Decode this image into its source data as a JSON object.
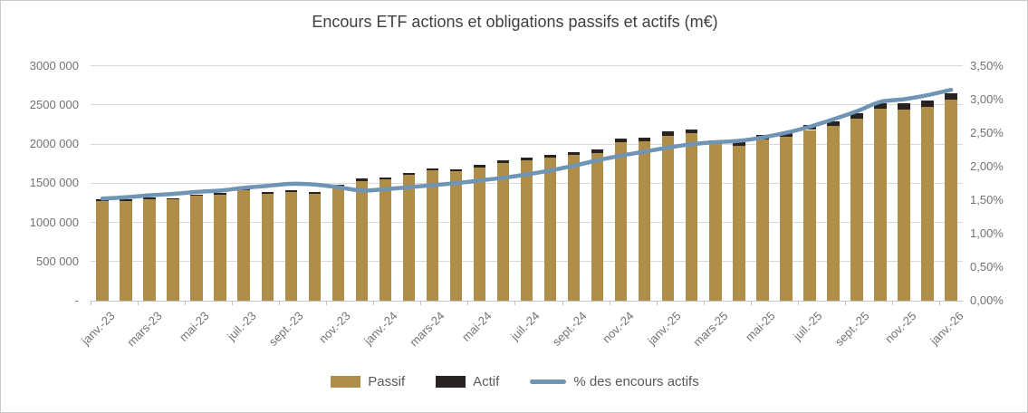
{
  "title": "Encours ETF actions et obligations passifs et actifs (m€)",
  "legend": {
    "passif_label": "Passif",
    "actif_label": "Actif",
    "line_label": "% des encours actifs"
  },
  "colors": {
    "passif": "#B08E48",
    "actif": "#282320",
    "line": "#6F94B4",
    "gridline": "#D9D9D9",
    "axis_text": "#767170",
    "title_text": "#3F3F3F",
    "legend_text": "#595959"
  },
  "chart_data": {
    "type": "combo_bar_line",
    "bar_mode": "stacked",
    "grid": true,
    "legend_position": "bottom",
    "categories": [
      "janv.-23",
      "févr.-23",
      "mars-23",
      "avr.-23",
      "mai-23",
      "juin-23",
      "juil.-23",
      "août-23",
      "sept.-23",
      "oct.-23",
      "nov.-23",
      "déc.-23",
      "janv.-24",
      "févr.-24",
      "mars-24",
      "avr.-24",
      "mai-24",
      "juin-24",
      "juil.-24",
      "août-24",
      "sept.-24",
      "oct.-24",
      "nov.-24",
      "déc.-24",
      "janv.-25",
      "févr.-25",
      "mars-25",
      "avr.-25",
      "mai-25",
      "juin-25",
      "juil.-25",
      "août-25",
      "sept.-25",
      "oct.-25",
      "nov.-25",
      "déc.-25",
      "janv.-26"
    ],
    "x_tick_labels": [
      "janv.-23",
      "mars-23",
      "mai-23",
      "juil.-23",
      "sept.-23",
      "nov.-23",
      "janv.-24",
      "mars-24",
      "mai-24",
      "juil.-24",
      "sept.-24",
      "nov.-24",
      "janv.-25",
      "mars-25",
      "mai-25",
      "juil.-25",
      "sept.-25",
      "nov.-25",
      "janv.-26"
    ],
    "series": [
      {
        "name": "Passif",
        "type": "bar",
        "axis": "left",
        "values": [
          1270400,
          1276000,
          1299300,
          1289200,
          1336000,
          1349500,
          1413800,
          1358400,
          1387400,
          1362000,
          1455000,
          1530500,
          1545900,
          1602500,
          1659000,
          1648600,
          1704900,
          1759200,
          1795600,
          1822000,
          1861800,
          1887700,
          2023300,
          2035800,
          2108800,
          2137000,
          1995800,
          1977800,
          2058700,
          2094300,
          2179100,
          2232100,
          2322600,
          2450300,
          2442500,
          2477800,
          2564900
        ]
      },
      {
        "name": "Actif",
        "type": "bar",
        "axis": "left",
        "values": [
          19600,
          20000,
          20700,
          20800,
          22000,
          22500,
          24200,
          23600,
          24600,
          24000,
          25000,
          25500,
          26100,
          27500,
          29000,
          29400,
          31100,
          32800,
          34400,
          36000,
          38200,
          40300,
          44700,
          46200,
          49200,
          51000,
          48200,
          48200,
          51300,
          53700,
          57900,
          61900,
          67400,
          74700,
          75500,
          78200,
          83100
        ]
      },
      {
        "name": "% des encours actifs",
        "type": "line",
        "axis": "right",
        "values": [
          1.52,
          1.54,
          1.57,
          1.59,
          1.62,
          1.64,
          1.68,
          1.71,
          1.74,
          1.73,
          1.69,
          1.64,
          1.66,
          1.69,
          1.72,
          1.75,
          1.79,
          1.83,
          1.88,
          1.94,
          2.01,
          2.09,
          2.16,
          2.22,
          2.28,
          2.33,
          2.36,
          2.38,
          2.43,
          2.5,
          2.59,
          2.7,
          2.82,
          2.96,
          3.0,
          3.06,
          3.14
        ]
      }
    ],
    "left_axis": {
      "min": 0,
      "max": 3000000,
      "tick_labels": [
        "3000 000",
        "2500 000",
        "2000 000",
        "1500 000",
        "1000 000",
        "500 000",
        "-"
      ]
    },
    "right_axis": {
      "min": 0,
      "max": 3.5,
      "tick_labels": [
        "3,50%",
        "3,00%",
        "2,50%",
        "2,00%",
        "1,50%",
        "1,00%",
        "0,50%",
        "0,00%"
      ]
    }
  }
}
